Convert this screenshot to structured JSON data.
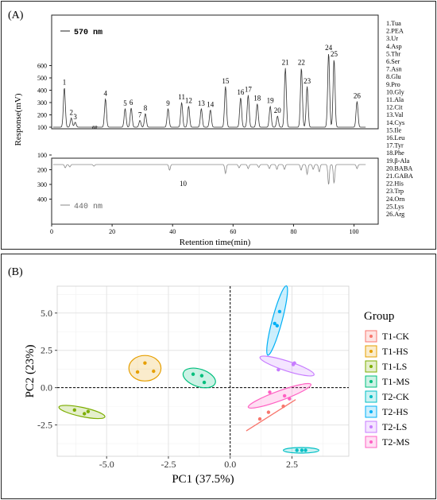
{
  "panelA": {
    "label": "(A)",
    "legend_570": "570 nm",
    "legend_440": "440 nm",
    "chart_data": {
      "type": "line",
      "xlabel": "Retention time(min)",
      "ylabel": "Response(mV)",
      "xlim": [
        0,
        108
      ],
      "xticks": [
        0,
        20,
        40,
        60,
        80,
        100
      ],
      "upper_yticks": [
        100,
        200,
        300,
        400,
        500,
        600
      ],
      "lower_yticks": [
        100,
        200,
        300,
        400
      ],
      "peaks": [
        {
          "n": "1",
          "x": 4.2,
          "h": 420
        },
        {
          "n": "2",
          "x": 6.5,
          "h": 175
        },
        {
          "n": "3",
          "x": 7.8,
          "h": 140
        },
        {
          "n": "4",
          "x": 17.8,
          "h": 330
        },
        {
          "n": "5",
          "x": 24.3,
          "h": 250
        },
        {
          "n": "6",
          "x": 26.3,
          "h": 255
        },
        {
          "n": "7",
          "x": 29.2,
          "h": 155
        },
        {
          "n": "8",
          "x": 31.0,
          "h": 210
        },
        {
          "n": "9",
          "x": 38.5,
          "h": 250
        },
        {
          "n": "11",
          "x": 43.0,
          "h": 300
        },
        {
          "n": "12",
          "x": 45.3,
          "h": 270
        },
        {
          "n": "13",
          "x": 49.5,
          "h": 250
        },
        {
          "n": "14",
          "x": 52.5,
          "h": 240
        },
        {
          "n": "15",
          "x": 57.5,
          "h": 430
        },
        {
          "n": "16",
          "x": 62.5,
          "h": 340
        },
        {
          "n": "17",
          "x": 65.0,
          "h": 360
        },
        {
          "n": "18",
          "x": 68.0,
          "h": 290
        },
        {
          "n": "19",
          "x": 72.3,
          "h": 270
        },
        {
          "n": "20",
          "x": 74.7,
          "h": 190
        },
        {
          "n": "21",
          "x": 77.3,
          "h": 580
        },
        {
          "n": "22",
          "x": 82.6,
          "h": 580
        },
        {
          "n": "23",
          "x": 84.5,
          "h": 430
        },
        {
          "n": "24",
          "x": 91.6,
          "h": 700
        },
        {
          "n": "25",
          "x": 93.4,
          "h": 650
        },
        {
          "n": "26",
          "x": 101.0,
          "h": 310
        }
      ],
      "lower_dips": [
        {
          "x": 4.5,
          "d": 40
        },
        {
          "x": 6.0,
          "d": 30
        },
        {
          "x": 14.0,
          "d": 20
        },
        {
          "x": 39.0,
          "d": 70
        },
        {
          "x": 57.5,
          "d": 110
        },
        {
          "x": 62.0,
          "d": 40
        },
        {
          "x": 65.0,
          "d": 50
        },
        {
          "x": 68.5,
          "d": 35
        },
        {
          "x": 72.0,
          "d": 50
        },
        {
          "x": 74.5,
          "d": 60
        },
        {
          "x": 77.0,
          "d": 60
        },
        {
          "x": 82.5,
          "d": 70
        },
        {
          "x": 84.5,
          "d": 120
        },
        {
          "x": 86.5,
          "d": 60
        },
        {
          "x": 88.5,
          "d": 90
        },
        {
          "x": 91.6,
          "d": 250
        },
        {
          "x": 93.4,
          "d": 230
        },
        {
          "x": 101.0,
          "d": 50
        }
      ],
      "label_10": "10",
      "compounds": [
        "1.Tua",
        "2.PEA",
        "3.Ur",
        "4.Asp",
        "5.Thr",
        "6.Ser",
        "7.Asn",
        "8.Glu",
        "9.Pro",
        "10.Gly",
        "11.Ala",
        "12.Cit",
        "13.Val",
        "14.Cys",
        "15.Ile",
        "16.Leu",
        "17.Tyr",
        "18.Phe",
        "19.β-Ala",
        "20.BABA",
        "21.GABA",
        "22.His",
        "23.Trp",
        "24.Orn",
        "25.Lys",
        "26.Arg"
      ]
    }
  },
  "panelB": {
    "label": "(B)",
    "chart_data": {
      "type": "scatter",
      "xlabel": "PC1 (37.5%)",
      "ylabel": "PC2 (23%)",
      "xlim": [
        -7.0,
        4.8
      ],
      "ylim": [
        -4.6,
        6.8
      ],
      "xticks": [
        -5.0,
        -2.5,
        0.0,
        2.5
      ],
      "xtick_labels": [
        "-5.0",
        "-2.5",
        "0.0",
        "2.5"
      ],
      "yticks": [
        -2.5,
        0.0,
        2.5,
        5.0
      ],
      "ytick_labels": [
        "-2.5",
        "0.0",
        "2.5",
        "5.0"
      ],
      "grid": true,
      "legend_title": "Group",
      "legend_position": "right",
      "series": [
        {
          "name": "T1-CK",
          "color": "#F8766D",
          "points": [
            [
              1.2,
              -2.1
            ],
            [
              1.55,
              -1.65
            ],
            [
              2.15,
              -1.25
            ]
          ],
          "line": [
            [
              0.65,
              -2.9
            ],
            [
              2.65,
              -0.8
            ]
          ]
        },
        {
          "name": "T1-HS",
          "color": "#E69F00",
          "points": [
            [
              -3.75,
              1.05
            ],
            [
              -3.45,
              1.65
            ],
            [
              -3.1,
              1.1
            ]
          ],
          "ellipse": {
            "cx": -3.45,
            "cy": 1.3,
            "rx": 0.65,
            "ry": 0.75,
            "rot": 0
          }
        },
        {
          "name": "T1-LS",
          "color": "#7CAE00",
          "points": [
            [
              -6.3,
              -1.5
            ],
            [
              -5.9,
              -1.75
            ],
            [
              -5.75,
              -1.6
            ]
          ],
          "ellipse": {
            "cx": -6.0,
            "cy": -1.63,
            "rx": 0.95,
            "ry": 0.2,
            "rot": -12
          }
        },
        {
          "name": "T1-MS",
          "color": "#00BF7D",
          "points": [
            [
              -1.5,
              0.9
            ],
            [
              -1.15,
              0.8
            ],
            [
              -1.05,
              0.35
            ]
          ],
          "ellipse": {
            "cx": -1.25,
            "cy": 0.65,
            "rx": 0.68,
            "ry": 0.48,
            "rot": -18
          }
        },
        {
          "name": "T2-CK",
          "color": "#00BFC4",
          "points": [
            [
              2.7,
              -4.2
            ],
            [
              2.9,
              -4.2
            ],
            [
              3.05,
              -4.2
            ]
          ],
          "ellipse": {
            "cx": 2.87,
            "cy": -4.2,
            "rx": 0.72,
            "ry": 0.08,
            "rot": 0
          }
        },
        {
          "name": "T2-HS",
          "color": "#00B0F6",
          "points": [
            [
              1.8,
              4.3
            ],
            [
              1.9,
              4.15
            ],
            [
              2.0,
              5.1
            ]
          ],
          "ellipse": {
            "cx": 1.9,
            "cy": 4.5,
            "rx": 1.45,
            "ry": 0.22,
            "rot": 75
          }
        },
        {
          "name": "T2-LS",
          "color": "#C77CFF",
          "points": [
            [
              1.95,
              1.2
            ],
            [
              2.55,
              1.55
            ],
            [
              2.6,
              1.65
            ]
          ],
          "ellipse": {
            "cx": 2.3,
            "cy": 1.45,
            "rx": 1.15,
            "ry": 0.22,
            "rot": -18
          }
        },
        {
          "name": "T2-MS",
          "color": "#FF61C3",
          "points": [
            [
              1.6,
              -0.3
            ],
            [
              2.2,
              -0.55
            ],
            [
              2.4,
              -0.75
            ]
          ],
          "ellipse": {
            "cx": 2.0,
            "cy": -0.55,
            "rx": 1.35,
            "ry": 0.22,
            "rot": 20
          }
        }
      ]
    }
  }
}
